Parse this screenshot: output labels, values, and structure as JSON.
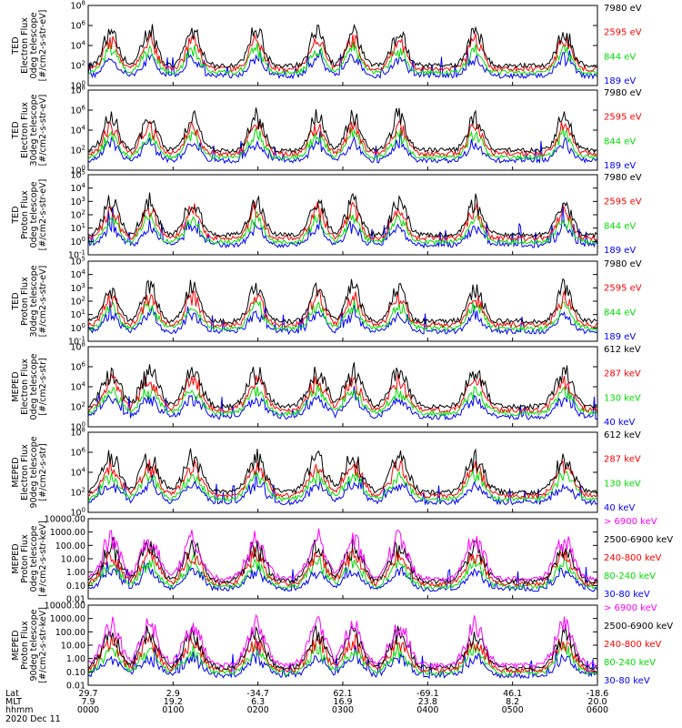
{
  "chart_data": {
    "type": "line",
    "date_label": "2020 Dec 11",
    "xaxis": {
      "row_labels": [
        "Lat",
        "MLT",
        "hhmm"
      ],
      "ticks": [
        {
          "lat": "29.7",
          "mlt": "7.9",
          "time": "0000"
        },
        {
          "lat": "2.9",
          "mlt": "19.2",
          "time": "0100"
        },
        {
          "lat": "-34.7",
          "mlt": "6.3",
          "time": "0200"
        },
        {
          "lat": "62.1",
          "mlt": "16.9",
          "time": "0300"
        },
        {
          "lat": "-69.1",
          "mlt": "23.8",
          "time": "0400"
        },
        {
          "lat": "46.1",
          "mlt": "8.2",
          "time": "0500"
        },
        {
          "lat": "-18.6",
          "mlt": "20.0",
          "time": "0600"
        }
      ]
    },
    "panels": [
      {
        "name": "ted-electron-0deg",
        "ylabel": [
          "TED",
          "Electron Flux",
          "0deg telescope",
          "[#/cm2-s-str-eV]"
        ],
        "ylim_log10": [
          0,
          8
        ],
        "yticks": [
          {
            "exp": 0,
            "label": "10^0"
          },
          {
            "exp": 2,
            "label": "10^2"
          },
          {
            "exp": 4,
            "label": "10^4"
          },
          {
            "exp": 6,
            "label": "10^6"
          },
          {
            "exp": 8,
            "label": "10^8"
          }
        ],
        "series": [
          {
            "name": "7980 eV",
            "color": "#000000"
          },
          {
            "name": "2595 eV",
            "color": "#ff0000"
          },
          {
            "name": "844 eV",
            "color": "#00dd00"
          },
          {
            "name": "189 eV",
            "color": "#0000ff"
          }
        ]
      },
      {
        "name": "ted-electron-30deg",
        "ylabel": [
          "TED",
          "Electron Flux",
          "30deg telescope",
          "[#/cm2-s-str-eV]"
        ],
        "ylim_log10": [
          0,
          8
        ],
        "yticks": [
          {
            "exp": 0,
            "label": "10^0"
          },
          {
            "exp": 2,
            "label": "10^2"
          },
          {
            "exp": 4,
            "label": "10^4"
          },
          {
            "exp": 6,
            "label": "10^6"
          },
          {
            "exp": 8,
            "label": "10^8"
          }
        ],
        "series": [
          {
            "name": "7980 eV",
            "color": "#000000"
          },
          {
            "name": "2595 eV",
            "color": "#ff0000"
          },
          {
            "name": "844 eV",
            "color": "#00dd00"
          },
          {
            "name": "189 eV",
            "color": "#0000ff"
          }
        ]
      },
      {
        "name": "ted-proton-0deg",
        "ylabel": [
          "TED",
          "Proton Flux",
          "0deg telescope",
          "[#/cm2-s-str-eV]"
        ],
        "ylim_log10": [
          -1,
          5
        ],
        "yticks": [
          {
            "exp": -1,
            "label": "10^-1"
          },
          {
            "exp": 0,
            "label": "10^0"
          },
          {
            "exp": 1,
            "label": "10^1"
          },
          {
            "exp": 2,
            "label": "10^2"
          },
          {
            "exp": 3,
            "label": "10^3"
          },
          {
            "exp": 4,
            "label": "10^4"
          },
          {
            "exp": 5,
            "label": "10^5"
          }
        ],
        "series": [
          {
            "name": "7980 eV",
            "color": "#000000"
          },
          {
            "name": "2595 eV",
            "color": "#ff0000"
          },
          {
            "name": "844 eV",
            "color": "#00dd00"
          },
          {
            "name": "189 eV",
            "color": "#0000ff"
          }
        ]
      },
      {
        "name": "ted-proton-30deg",
        "ylabel": [
          "TED",
          "Proton Flux",
          "30deg telescope",
          "[#/cm2-s-str-eV]"
        ],
        "ylim_log10": [
          -1,
          5
        ],
        "yticks": [
          {
            "exp": -1,
            "label": "10^-1"
          },
          {
            "exp": 0,
            "label": "10^0"
          },
          {
            "exp": 1,
            "label": "10^1"
          },
          {
            "exp": 2,
            "label": "10^2"
          },
          {
            "exp": 3,
            "label": "10^3"
          },
          {
            "exp": 4,
            "label": "10^4"
          },
          {
            "exp": 5,
            "label": "10^5"
          }
        ],
        "series": [
          {
            "name": "7980 eV",
            "color": "#000000"
          },
          {
            "name": "2595 eV",
            "color": "#ff0000"
          },
          {
            "name": "844 eV",
            "color": "#00dd00"
          },
          {
            "name": "189 eV",
            "color": "#0000ff"
          }
        ]
      },
      {
        "name": "meped-electron-0deg",
        "ylabel": [
          "MEPED",
          "Electron Flux",
          "0deg telescope",
          "[#/cm2-s-str]"
        ],
        "ylim_log10": [
          0,
          8
        ],
        "yticks": [
          {
            "exp": 0,
            "label": "10^0"
          },
          {
            "exp": 2,
            "label": "10^2"
          },
          {
            "exp": 4,
            "label": "10^4"
          },
          {
            "exp": 6,
            "label": "10^6"
          },
          {
            "exp": 8,
            "label": "10^8"
          }
        ],
        "series": [
          {
            "name": "612 keV",
            "color": "#000000"
          },
          {
            "name": "287 keV",
            "color": "#ff0000"
          },
          {
            "name": "130 keV",
            "color": "#00dd00"
          },
          {
            "name": "40 keV",
            "color": "#0000ff"
          }
        ]
      },
      {
        "name": "meped-electron-90deg",
        "ylabel": [
          "MEPED",
          "Electron Flux",
          "90deg telescope",
          "[#/cm2-s-str]"
        ],
        "ylim_log10": [
          0,
          8
        ],
        "yticks": [
          {
            "exp": 0,
            "label": "10^0"
          },
          {
            "exp": 2,
            "label": "10^2"
          },
          {
            "exp": 4,
            "label": "10^4"
          },
          {
            "exp": 6,
            "label": "10^6"
          },
          {
            "exp": 8,
            "label": "10^8"
          }
        ],
        "series": [
          {
            "name": "612 keV",
            "color": "#000000"
          },
          {
            "name": "287 keV",
            "color": "#ff0000"
          },
          {
            "name": "130 keV",
            "color": "#00dd00"
          },
          {
            "name": "40 keV",
            "color": "#0000ff"
          }
        ]
      },
      {
        "name": "meped-proton-0deg",
        "ylabel": [
          "MEPED",
          "Proton Flux",
          "0deg telescope",
          "[#/cm2-s-str-keV]"
        ],
        "ylim_log10": [
          -2,
          4
        ],
        "yticks": [
          {
            "exp": -2,
            "label": "0.01"
          },
          {
            "exp": -1,
            "label": "0.10"
          },
          {
            "exp": 0,
            "label": "1.00"
          },
          {
            "exp": 1,
            "label": "10.00"
          },
          {
            "exp": 2,
            "label": "100.00"
          },
          {
            "exp": 3,
            "label": "1000.00"
          },
          {
            "exp": 4,
            "label": "10000.00"
          }
        ],
        "series": [
          {
            "name": "> 6900 keV",
            "color": "#ff00ff"
          },
          {
            "name": "2500-6900 keV",
            "color": "#000000"
          },
          {
            "name": "240-800 keV",
            "color": "#ff0000"
          },
          {
            "name": "80-240 keV",
            "color": "#00dd00"
          },
          {
            "name": "30-80 keV",
            "color": "#0000ff"
          }
        ]
      },
      {
        "name": "meped-proton-90deg",
        "ylabel": [
          "MEPED",
          "Proton Flux",
          "90deg telescope",
          "[#/cm2-s-str-keV]"
        ],
        "ylim_log10": [
          -2,
          4
        ],
        "yticks": [
          {
            "exp": -2,
            "label": "0.01"
          },
          {
            "exp": -1,
            "label": "0.10"
          },
          {
            "exp": 0,
            "label": "1.00"
          },
          {
            "exp": 1,
            "label": "10.00"
          },
          {
            "exp": 2,
            "label": "100.00"
          },
          {
            "exp": 3,
            "label": "1000.00"
          },
          {
            "exp": 4,
            "label": "10000.00"
          }
        ],
        "series": [
          {
            "name": "> 6900 keV",
            "color": "#ff00ff"
          },
          {
            "name": "2500-6900 keV",
            "color": "#000000"
          },
          {
            "name": "240-800 keV",
            "color": "#ff0000"
          },
          {
            "name": "80-240 keV",
            "color": "#00dd00"
          },
          {
            "name": "30-80 keV",
            "color": "#0000ff"
          }
        ]
      }
    ]
  }
}
